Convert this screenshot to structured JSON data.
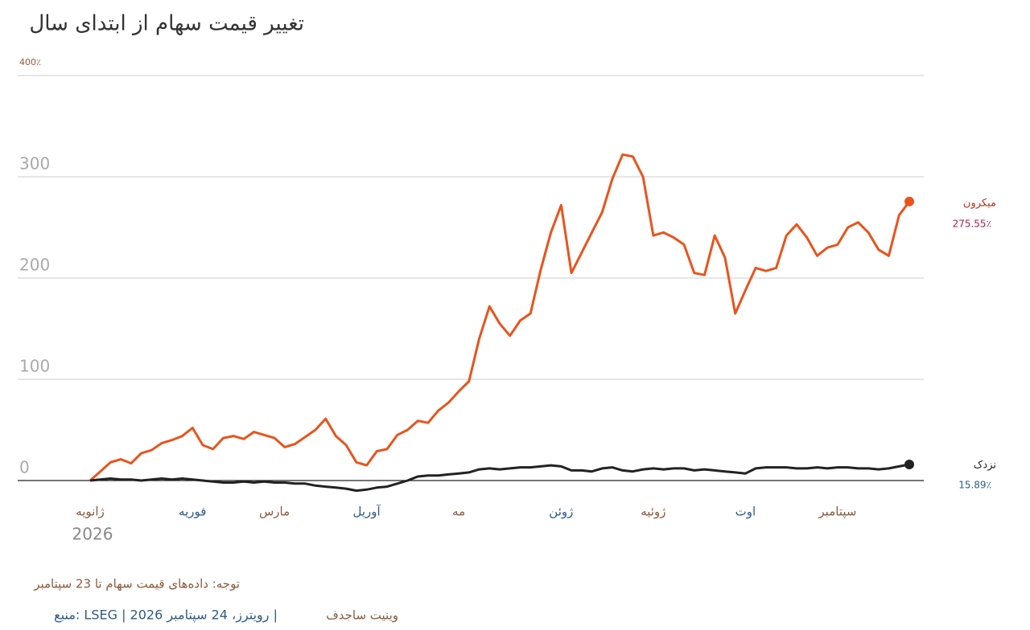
{
  "chart_data": {
    "type": "line",
    "title": "تغییر قیمت سهام از ابتدای سال",
    "year_label": "2026",
    "note": "توجه: داده‌های قیمت سهام تا 23 سپتامبر",
    "source": "منبع: LSEG | رویترز، 24 سپتامبر 2026 |",
    "author": "وینیت ساجدف",
    "categories": [
      "ژانویه",
      null,
      null,
      null,
      null,
      null,
      null,
      null,
      null,
      null,
      "فوریه",
      null,
      null,
      null,
      null,
      null,
      null,
      null,
      "مارس",
      null,
      null,
      null,
      null,
      null,
      null,
      null,
      null,
      "آوریل",
      null,
      null,
      null,
      null,
      null,
      null,
      null,
      null,
      "مه",
      null,
      null,
      null,
      null,
      null,
      null,
      null,
      null,
      null,
      "ژوئن",
      null,
      null,
      null,
      null,
      null,
      null,
      null,
      null,
      "ژوئیه",
      null,
      null,
      null,
      null,
      null,
      null,
      null,
      null,
      "اوت",
      null,
      null,
      null,
      null,
      null,
      null,
      null,
      null,
      "سپتامبر",
      null,
      null,
      null,
      null,
      null,
      null,
      null
    ],
    "series": [
      {
        "name": "میکرون",
        "color": "#e8541c",
        "values": [
          0,
          9,
          18,
          21,
          17,
          27,
          30,
          37,
          40,
          44,
          52,
          35,
          31,
          42,
          44,
          41,
          48,
          45,
          42,
          33,
          36,
          43,
          50,
          61,
          44,
          35,
          18,
          15,
          29,
          31,
          45,
          50,
          59,
          57,
          69,
          77,
          88,
          98,
          140,
          172,
          155,
          143,
          158,
          165,
          208,
          245,
          272,
          205,
          225,
          245,
          265,
          298,
          322,
          320,
          300,
          242,
          245,
          240,
          233,
          205,
          203,
          242,
          220,
          165,
          188,
          210,
          207,
          210,
          242,
          253,
          240,
          222,
          230,
          233,
          250,
          255,
          245,
          228,
          222,
          262,
          275.55
        ],
        "value_labels": [
          null,
          null,
          null,
          null,
          null,
          null,
          null,
          null,
          null,
          null,
          null,
          null,
          null,
          null,
          null,
          null,
          null,
          null,
          null,
          null,
          null,
          null,
          null,
          null,
          null,
          null,
          null,
          null,
          null,
          null,
          null,
          null,
          null,
          null,
          null,
          null,
          null,
          null,
          null,
          null,
          null,
          null,
          null,
          null,
          null,
          null,
          null,
          null,
          null,
          null,
          null,
          null,
          null,
          null,
          null,
          null,
          null,
          null,
          null,
          null,
          null,
          null,
          null,
          null,
          null,
          null,
          null,
          null,
          null,
          null,
          null,
          null,
          null,
          null,
          null,
          null,
          null,
          null,
          null,
          null,
          "275.55٪"
        ]
      },
      {
        "name": "نزدک",
        "color": "#222222",
        "values": [
          0,
          1,
          2,
          1,
          1,
          0,
          1,
          2,
          1,
          2,
          1,
          0,
          -1,
          -2,
          -2,
          -1,
          -2,
          -1,
          -2,
          -2,
          -3,
          -3,
          -5,
          -6,
          -7,
          -8,
          -10,
          -9,
          -7,
          -6,
          -3,
          0,
          4,
          5,
          5,
          6,
          7,
          8,
          11,
          12,
          11,
          12,
          13,
          13,
          14,
          15,
          14,
          10,
          10,
          9,
          12,
          13,
          10,
          9,
          11,
          12,
          11,
          12,
          12,
          10,
          11,
          10,
          9,
          8,
          7,
          12,
          13,
          13,
          13,
          12,
          12,
          13,
          12,
          13,
          13,
          12,
          12,
          11,
          12,
          14,
          15.89
        ],
        "value_labels": [
          null,
          null,
          null,
          null,
          null,
          null,
          null,
          null,
          null,
          null,
          null,
          null,
          null,
          null,
          null,
          null,
          null,
          null,
          null,
          null,
          null,
          null,
          null,
          null,
          null,
          null,
          null,
          null,
          null,
          null,
          null,
          null,
          null,
          null,
          null,
          null,
          null,
          null,
          null,
          null,
          null,
          null,
          null,
          null,
          null,
          null,
          null,
          null,
          null,
          null,
          null,
          null,
          null,
          null,
          null,
          null,
          null,
          null,
          null,
          null,
          null,
          null,
          null,
          null,
          null,
          null,
          null,
          null,
          null,
          null,
          null,
          null,
          null,
          null,
          null,
          null,
          null,
          null,
          null,
          null,
          "15.89٪"
        ]
      }
    ],
    "ylim": [
      0,
      400
    ],
    "yticks": [
      0,
      100,
      200,
      300,
      {
        "value": 400,
        "label": "400٪"
      }
    ],
    "grid": true
  }
}
